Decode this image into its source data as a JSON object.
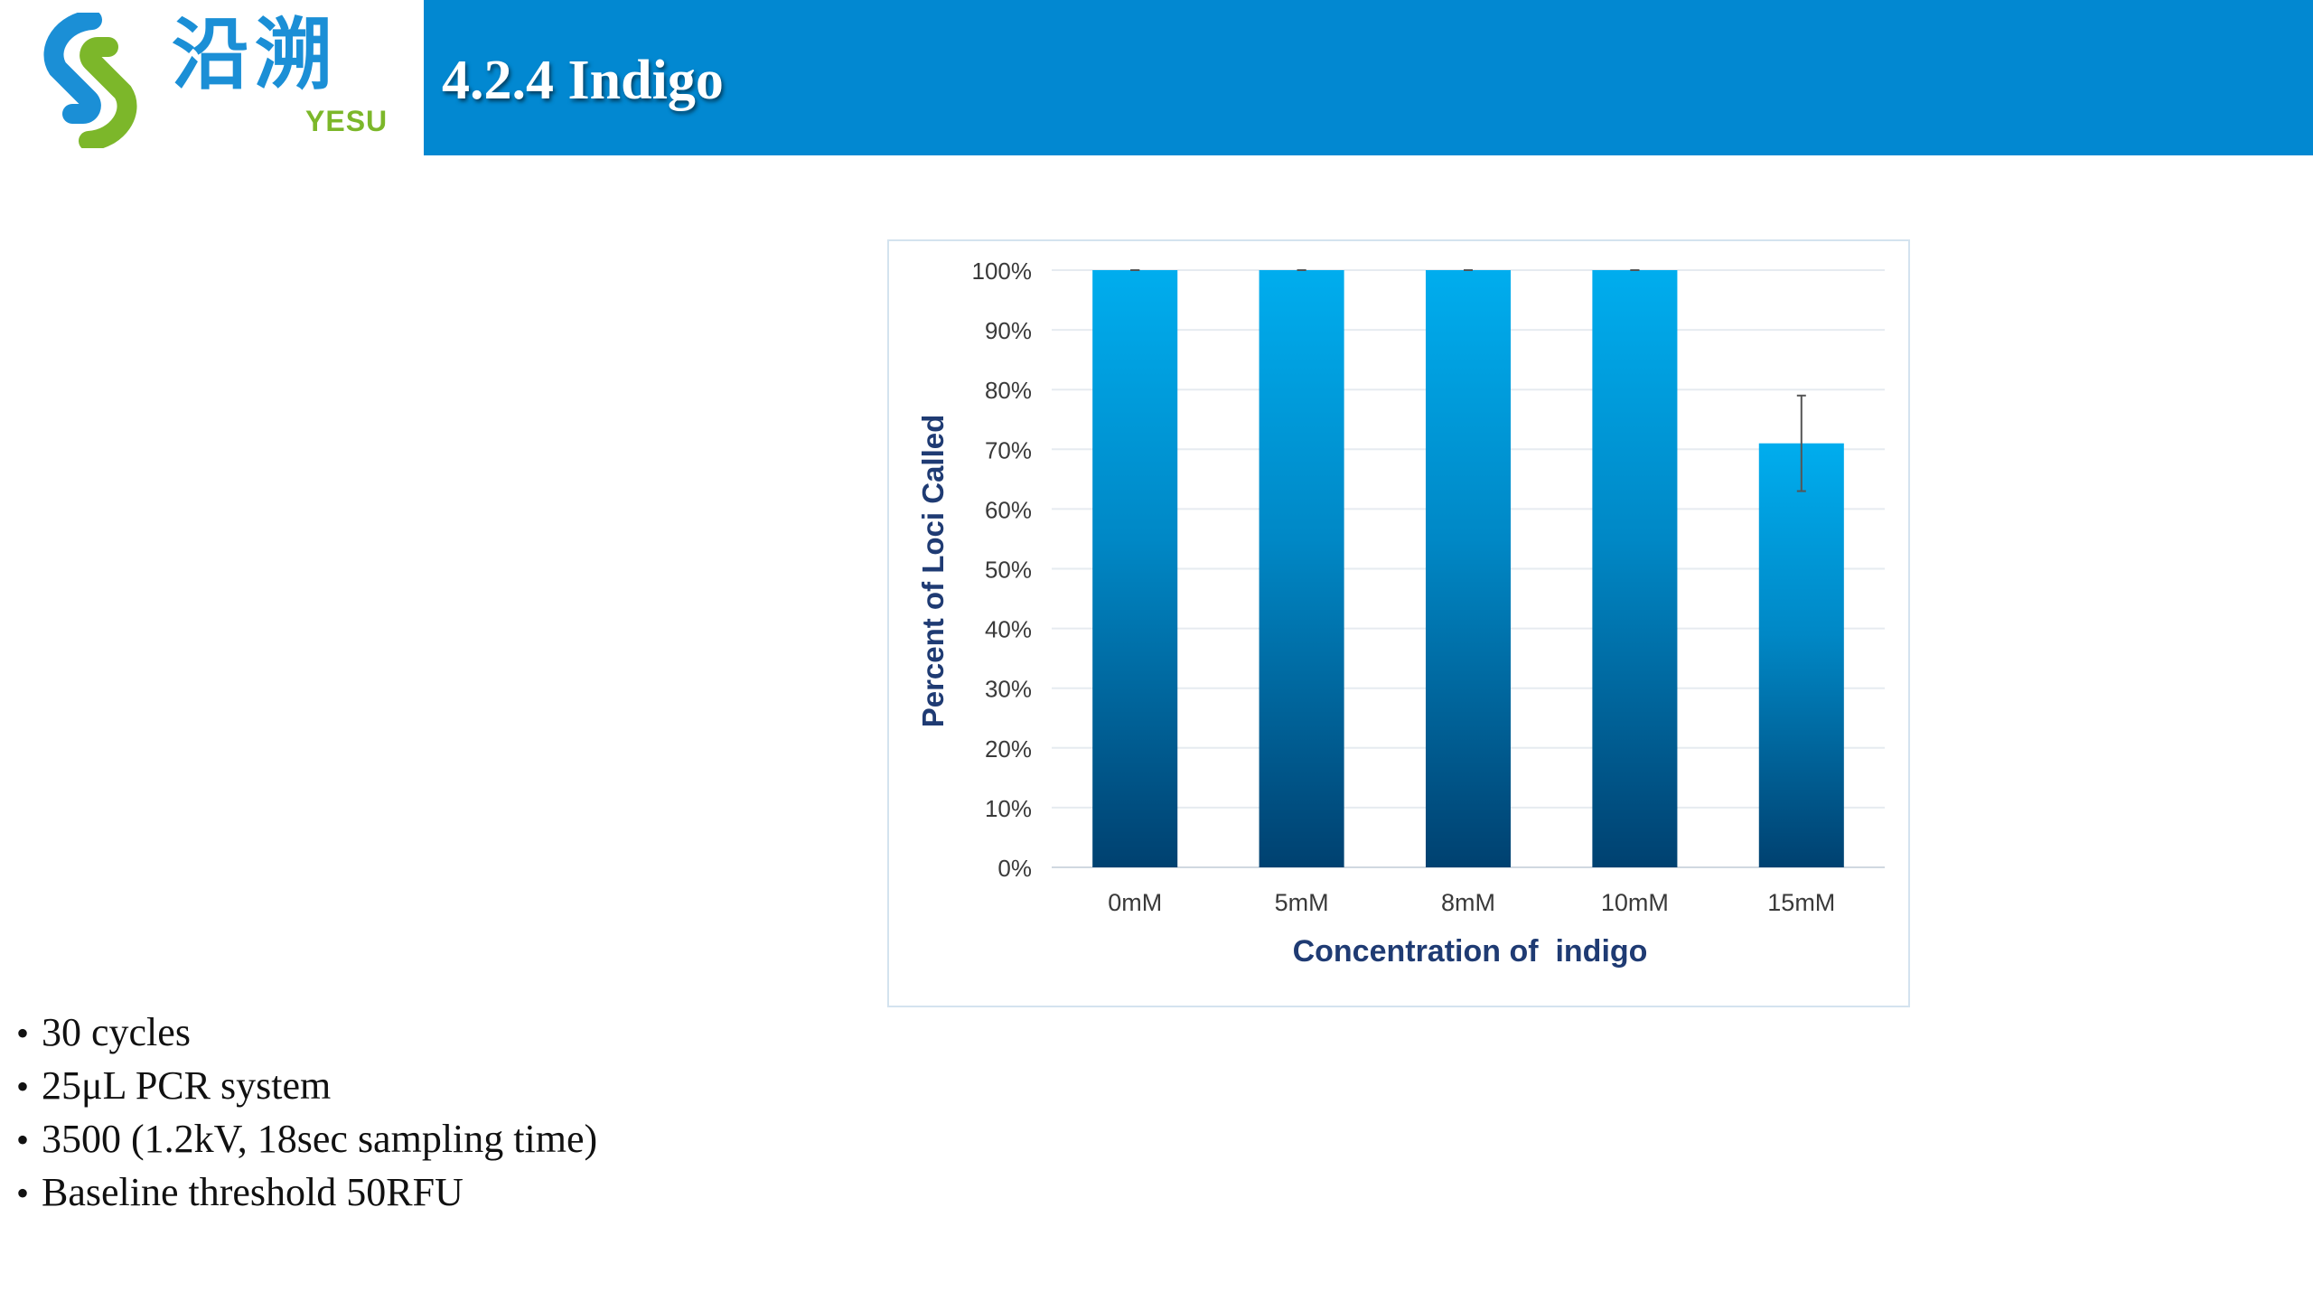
{
  "header": {
    "logo_cn": "沿溯",
    "logo_en": "YESU",
    "title": "4.2.4 Indigo"
  },
  "colors": {
    "title_bar": "#0288d1",
    "logo_blue": "#1b8fd6",
    "logo_green": "#7cb72a",
    "bar_top": "#00adee",
    "bar_bottom": "#004170",
    "axis_label": "#1f3b73",
    "tick_label": "#3a3a3a"
  },
  "chart_data": {
    "type": "bar",
    "title": "",
    "xlabel": "Concentration of  indigo",
    "ylabel": "Percent of Loci Called",
    "categories": [
      "0mM",
      "5mM",
      "8mM",
      "10mM",
      "15mM"
    ],
    "values": [
      100,
      100,
      100,
      100,
      71
    ],
    "error": [
      0,
      0,
      0,
      0,
      8
    ],
    "ylim": [
      0,
      100
    ],
    "yticks": [
      "0%",
      "10%",
      "20%",
      "30%",
      "40%",
      "50%",
      "60%",
      "70%",
      "80%",
      "90%",
      "100%"
    ],
    "grid": true,
    "legend": "none"
  },
  "bullets": [
    "30 cycles",
    "25μL PCR system",
    "3500 (1.2kV, 18sec sampling time)",
    "Baseline threshold 50RFU"
  ]
}
